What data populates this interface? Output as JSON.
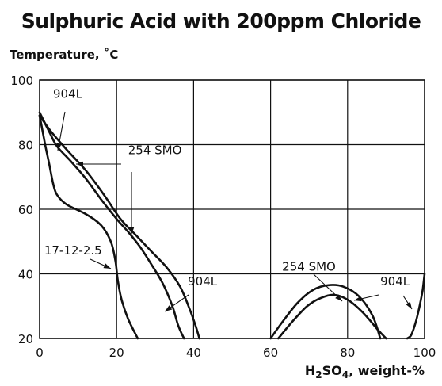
{
  "chart_data": {
    "type": "line",
    "title": "Sulphuric Acid with 200ppm Chloride",
    "ylabel": "Temperature, ˚C",
    "xlabel_main": "H",
    "xlabel_sub1": "2",
    "xlabel_mid": "SO",
    "xlabel_sub2": "4",
    "xlabel_tail": ", weight-%",
    "xlim": [
      0,
      100
    ],
    "ylim": [
      20,
      100
    ],
    "x_ticks": [
      0,
      20,
      40,
      60,
      80,
      100
    ],
    "y_ticks": [
      20,
      40,
      60,
      80,
      100
    ],
    "grid": true,
    "series": [
      {
        "name": "904L",
        "points": [
          [
            0,
            90
          ],
          [
            2.5,
            84
          ],
          [
            4.5,
            79.5
          ],
          [
            8,
            75
          ],
          [
            12,
            69.5
          ],
          [
            16,
            63
          ],
          [
            20,
            57
          ],
          [
            23,
            53
          ],
          [
            26,
            48.5
          ],
          [
            29,
            43
          ],
          [
            32,
            37
          ],
          [
            34.5,
            30
          ],
          [
            36,
            24
          ],
          [
            37.5,
            20
          ]
        ]
      },
      {
        "name": "254 SMO",
        "points": [
          [
            0,
            89
          ],
          [
            3,
            84
          ],
          [
            7,
            78.5
          ],
          [
            12,
            72
          ],
          [
            17,
            64
          ],
          [
            21,
            57
          ],
          [
            25,
            52
          ],
          [
            29,
            47
          ],
          [
            33,
            42
          ],
          [
            36.5,
            36
          ],
          [
            39,
            29
          ],
          [
            40.5,
            24
          ],
          [
            41.5,
            20
          ]
        ]
      },
      {
        "name": "17-12-2.5",
        "points": [
          [
            0,
            89
          ],
          [
            0.8,
            84
          ],
          [
            1.6,
            79
          ],
          [
            2.5,
            74
          ],
          [
            3.5,
            68
          ],
          [
            4.5,
            64.5
          ],
          [
            7,
            61.5
          ],
          [
            12,
            58.5
          ],
          [
            16,
            55
          ],
          [
            18.5,
            50
          ],
          [
            19.7,
            44
          ],
          [
            20.3,
            38
          ],
          [
            21.3,
            32
          ],
          [
            23,
            26
          ],
          [
            25.5,
            20
          ]
        ]
      },
      {
        "name": "254 SMO",
        "points": [
          [
            60,
            20
          ],
          [
            63,
            25
          ],
          [
            67,
            31
          ],
          [
            71,
            35
          ],
          [
            75,
            36.5
          ],
          [
            79,
            36
          ],
          [
            83,
            33
          ],
          [
            86.5,
            27
          ],
          [
            88.5,
            20
          ]
        ]
      },
      {
        "name": "904L",
        "points": [
          [
            62,
            20
          ],
          [
            65.5,
            25
          ],
          [
            69.5,
            30
          ],
          [
            73,
            32.5
          ],
          [
            76.5,
            33.5
          ],
          [
            80,
            32
          ],
          [
            84,
            28
          ],
          [
            88,
            22.5
          ],
          [
            90,
            20
          ]
        ]
      },
      {
        "name": "904L",
        "points": [
          [
            95.5,
            20
          ],
          [
            96.5,
            21
          ],
          [
            97.7,
            25
          ],
          [
            98.7,
            30
          ],
          [
            99.5,
            35
          ],
          [
            100,
            40
          ]
        ]
      }
    ],
    "annotations": [
      {
        "text": "904L",
        "pos": [
          3.5,
          94.5
        ]
      },
      {
        "text": "254 SMO",
        "pos": [
          23,
          77
        ]
      },
      {
        "text": "17-12-2.5",
        "pos": [
          1.2,
          46
        ]
      },
      {
        "text": "254 SMO",
        "pos": [
          63,
          41
        ]
      },
      {
        "text": "904L",
        "pos": [
          38.5,
          36.5
        ]
      },
      {
        "text": "904L",
        "pos": [
          88.5,
          36.5
        ]
      }
    ]
  }
}
